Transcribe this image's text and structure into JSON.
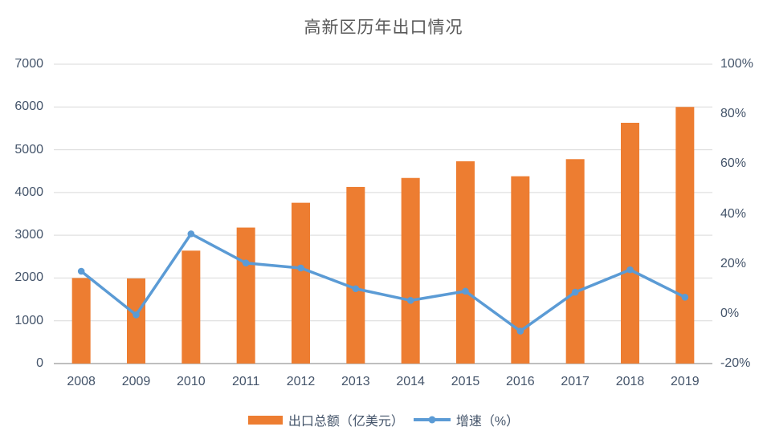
{
  "title": "高新区历年出口情况",
  "legend": {
    "bar_label": "出口总额（亿美元）",
    "line_label": "增速（%）"
  },
  "colors": {
    "bar": "#ED7D31",
    "line": "#5B9BD5",
    "grid": "#D9D9D9",
    "axis_line": "#BFBFBF",
    "tick_text": "#44546A",
    "title_text": "#595959"
  },
  "chart_data": {
    "type": "combo",
    "title": "高新区历年出口情况",
    "categories": [
      "2008",
      "2009",
      "2010",
      "2011",
      "2012",
      "2013",
      "2014",
      "2015",
      "2016",
      "2017",
      "2018",
      "2019"
    ],
    "series": [
      {
        "name": "出口总额（亿美元）",
        "type": "bar",
        "axis": "left",
        "color": "#ED7D31",
        "values": [
          2000,
          1990,
          2640,
          3180,
          3760,
          4130,
          4340,
          4730,
          4380,
          4780,
          5630,
          6000
        ]
      },
      {
        "name": "增速（%）",
        "type": "line",
        "axis": "right",
        "color": "#5B9BD5",
        "values": [
          17,
          -0.5,
          32,
          20.3,
          18.3,
          10,
          5.3,
          9,
          -7,
          8.6,
          17.6,
          6.6
        ]
      }
    ],
    "left_axis": {
      "min": 0,
      "max": 7000,
      "step": 1000,
      "ticks": [
        "0",
        "1000",
        "2000",
        "3000",
        "4000",
        "5000",
        "6000",
        "7000"
      ]
    },
    "right_axis": {
      "min": -20,
      "max": 100,
      "step": 20,
      "ticks": [
        "-20%",
        "0%",
        "20%",
        "40%",
        "60%",
        "80%",
        "100%"
      ]
    },
    "grid": true,
    "legend_position": "bottom"
  }
}
